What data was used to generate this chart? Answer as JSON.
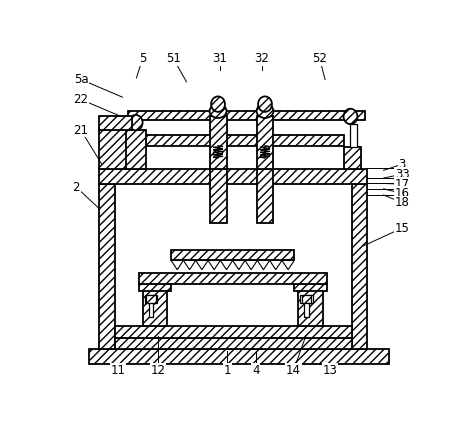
{
  "bg": "#ffffff",
  "lc": "#000000",
  "lw": 1.3,
  "hatch": "////",
  "figsize": [
    4.66,
    4.25
  ],
  "dpi": 100,
  "xlim": [
    0,
    466
  ],
  "ylim": [
    0,
    425
  ]
}
